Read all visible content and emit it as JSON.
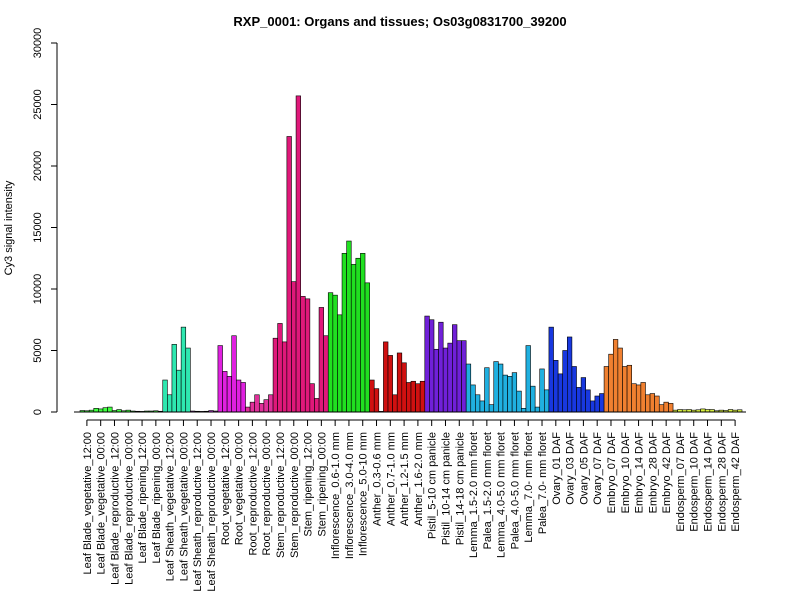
{
  "chart_data": {
    "type": "bar",
    "title": "RXP_0001: Organs and tissues; Os03g0831700_39200",
    "xlabel": "",
    "ylabel": "Cy3 signal intensity",
    "ylim": [
      0,
      30000
    ],
    "yticks": [
      "0",
      "5000",
      "10000",
      "15000",
      "20000",
      "25000",
      "30000"
    ],
    "ytick_values": [
      0,
      5000,
      10000,
      15000,
      20000,
      25000,
      30000
    ],
    "grid": false,
    "category_labels": [
      "Leaf Blade_vegetative_12:00",
      "Leaf Blade_vegetative_00:00",
      "Leaf Blade_reproductive_12:00",
      "Leaf Blade_reproductive_00:00",
      "Leaf Blade_ripening_12:00",
      "Leaf Blade_ripening_00:00",
      "Leaf Sheath_vegetative_12:00",
      "Leaf Sheath_vegetative_00:00",
      "Leaf Sheath_reproductive_12:00",
      "Leaf Sheath_reproductive_00:00",
      "Root_vegetative_12:00",
      "Root_vegetative_00:00",
      "Root_reproductive_12:00",
      "Root_reproductive_00:00",
      "Stem_reproductive_12:00",
      "Stem_reproductive_00:00",
      "Stem_ripening_12:00",
      "Stem_ripening_00:00",
      "Inflorescence_0.6-1.0 mm",
      "Inflorescence_3.0-4.0 mm",
      "Inflorescence_5.0-10 mm",
      "Anther_0.3-0.6 mm",
      "Anther_0.7-1.0 mm",
      "Anther_1.2-1.5 mm",
      "Anther_1.6-2.0 mm",
      "Pistil_5-10 cm panicle",
      "Pistil_10-14 cm panicle",
      "Pistil_14-18 cm panicle",
      "Lemma_1.5-2.0 mm floret",
      "Palea_1.5-2.0 mm floret",
      "Lemma_4.0-5.0 mm floret",
      "Palea_4.0-5.0 mm floret",
      "Lemma_7.0- mm floret",
      "Palea_7.0- mm floret",
      "Ovary_01 DAF",
      "Ovary_03 DAF",
      "Ovary_05 DAF",
      "Ovary_07 DAF",
      "Embryo_07 DAF",
      "Embryo_10 DAF",
      "Embryo_14 DAF",
      "Embryo_28 DAF",
      "Embryo_42 DAF",
      "Endosperm_07 DAF",
      "Endosperm_10 DAF",
      "Endosperm_14 DAF",
      "Endosperm_28 DAF",
      "Endosperm_42 DAF"
    ],
    "groups": [
      {
        "color": "#40ff40",
        "values": [
          120,
          100,
          150
        ]
      },
      {
        "color": "#40ff40",
        "values": [
          300,
          250,
          350
        ]
      },
      {
        "color": "#40ff40",
        "values": [
          400,
          120,
          200
        ]
      },
      {
        "color": "#40ff40",
        "values": [
          100,
          150,
          80
        ]
      },
      {
        "color": "#40ff40",
        "values": [
          60,
          50,
          80
        ]
      },
      {
        "color": "#40ff40",
        "values": [
          80,
          100,
          60
        ]
      },
      {
        "color": "#2ee8b0",
        "values": [
          2600,
          1400,
          5500
        ]
      },
      {
        "color": "#2ee8b0",
        "values": [
          3400,
          6900,
          5200
        ]
      },
      {
        "color": "#c040e0",
        "values": [
          80,
          60,
          50
        ]
      },
      {
        "color": "#c040e0",
        "values": [
          60,
          120,
          80
        ]
      },
      {
        "color": "#e020e0",
        "values": [
          5400,
          3300,
          2900
        ]
      },
      {
        "color": "#e020e0",
        "values": [
          6200,
          2600,
          2400
        ]
      },
      {
        "color": "#e0309a",
        "values": [
          400,
          800,
          1400
        ]
      },
      {
        "color": "#e0309a",
        "values": [
          700,
          1000,
          1400
        ]
      },
      {
        "color": "#e0187a",
        "values": [
          6000,
          7200,
          5700
        ]
      },
      {
        "color": "#e0187a",
        "values": [
          22400,
          10600,
          25700
        ]
      },
      {
        "color": "#e0187a",
        "values": [
          9400,
          9200,
          2300
        ]
      },
      {
        "color": "#e0187a",
        "values": [
          1100,
          8500,
          6200
        ]
      },
      {
        "color": "#20e020",
        "values": [
          9700,
          9500,
          7900
        ]
      },
      {
        "color": "#20e020",
        "values": [
          12900,
          13900,
          12000
        ]
      },
      {
        "color": "#20e020",
        "values": [
          12500,
          12900,
          10500
        ]
      },
      {
        "color": "#d01010",
        "values": [
          2600,
          1900,
          50
        ]
      },
      {
        "color": "#d01010",
        "values": [
          5700,
          4600,
          1400
        ]
      },
      {
        "color": "#d01010",
        "values": [
          4800,
          4000,
          2400
        ]
      },
      {
        "color": "#d01010",
        "values": [
          2500,
          2300,
          2500
        ]
      },
      {
        "color": "#7020d8",
        "values": [
          7800,
          7500,
          5100
        ]
      },
      {
        "color": "#7020d8",
        "values": [
          7300,
          5200,
          5600
        ]
      },
      {
        "color": "#7020d8",
        "values": [
          7100,
          5800,
          5800
        ]
      },
      {
        "color": "#20b0e0",
        "values": [
          3900,
          2200,
          1400
        ]
      },
      {
        "color": "#20b0e0",
        "values": [
          900,
          3600,
          600
        ]
      },
      {
        "color": "#20b0e0",
        "values": [
          4100,
          3900,
          3000
        ]
      },
      {
        "color": "#20b0e0",
        "values": [
          2900,
          3200,
          1700
        ]
      },
      {
        "color": "#20b0e0",
        "values": [
          300,
          5400,
          2100
        ]
      },
      {
        "color": "#20b0e0",
        "values": [
          400,
          3500,
          1800
        ]
      },
      {
        "color": "#1838e0",
        "values": [
          6900,
          4200,
          3100
        ]
      },
      {
        "color": "#1838e0",
        "values": [
          5000,
          6100,
          3700
        ]
      },
      {
        "color": "#1838e0",
        "values": [
          2000,
          2800,
          1800
        ]
      },
      {
        "color": "#1838e0",
        "values": [
          900,
          1300,
          1500
        ]
      },
      {
        "color": "#f08030",
        "values": [
          3700,
          4700,
          5900
        ]
      },
      {
        "color": "#f08030",
        "values": [
          5200,
          3700,
          3800
        ]
      },
      {
        "color": "#f08030",
        "values": [
          2300,
          2200,
          2400
        ]
      },
      {
        "color": "#f08030",
        "values": [
          1400,
          1500,
          1300
        ]
      },
      {
        "color": "#f08030",
        "values": [
          600,
          800,
          700
        ]
      },
      {
        "color": "#d8f040",
        "values": [
          150,
          200,
          180
        ]
      },
      {
        "color": "#d8f040",
        "values": [
          200,
          150,
          180
        ]
      },
      {
        "color": "#d8f040",
        "values": [
          250,
          200,
          200
        ]
      },
      {
        "color": "#d8f040",
        "values": [
          100,
          150,
          120
        ]
      },
      {
        "color": "#d8f040",
        "values": [
          200,
          150,
          180
        ]
      }
    ]
  }
}
